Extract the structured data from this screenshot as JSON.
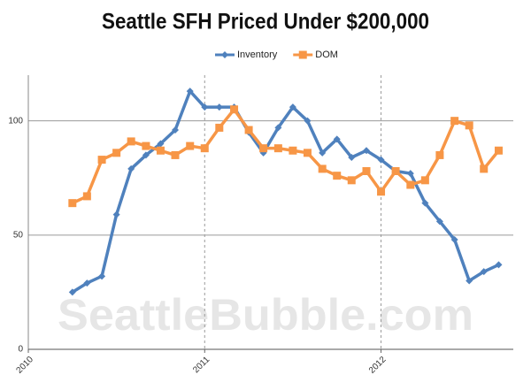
{
  "chart_data": {
    "type": "line",
    "title": "Seattle SFH Priced Under $200,000",
    "watermark": "SeattleBubble.com",
    "x": [
      2010.25,
      2010.333,
      2010.417,
      2010.5,
      2010.583,
      2010.667,
      2010.75,
      2010.833,
      2010.917,
      2011,
      2011.083,
      2011.167,
      2011.25,
      2011.333,
      2011.417,
      2011.5,
      2011.583,
      2011.667,
      2011.75,
      2011.833,
      2011.917,
      2012,
      2012.083,
      2012.167,
      2012.25,
      2012.333,
      2012.417,
      2012.5,
      2012.583,
      2012.667
    ],
    "series": [
      {
        "name": "Inventory",
        "color": "#4f81bd",
        "marker": "diamond",
        "values": [
          25,
          29,
          32,
          59,
          79,
          85,
          90,
          96,
          113,
          106,
          106,
          106,
          95,
          86,
          97,
          106,
          100,
          86,
          92,
          84,
          87,
          83,
          78,
          77,
          64,
          56,
          48,
          30,
          34,
          37
        ]
      },
      {
        "name": "DOM",
        "color": "#f79646",
        "marker": "square",
        "values": [
          64,
          67,
          83,
          86,
          91,
          89,
          87,
          85,
          89,
          88,
          97,
          105,
          96,
          88,
          88,
          87,
          86,
          79,
          76,
          74,
          78,
          69,
          78,
          72,
          74,
          85,
          100,
          98,
          79,
          87
        ]
      }
    ],
    "xlim": [
      2010,
      2012.75
    ],
    "xticks": [
      2010,
      2011,
      2012
    ],
    "ylim": [
      0,
      120
    ],
    "yticks": [
      0,
      50,
      100
    ],
    "grid": true,
    "legend": "top"
  }
}
